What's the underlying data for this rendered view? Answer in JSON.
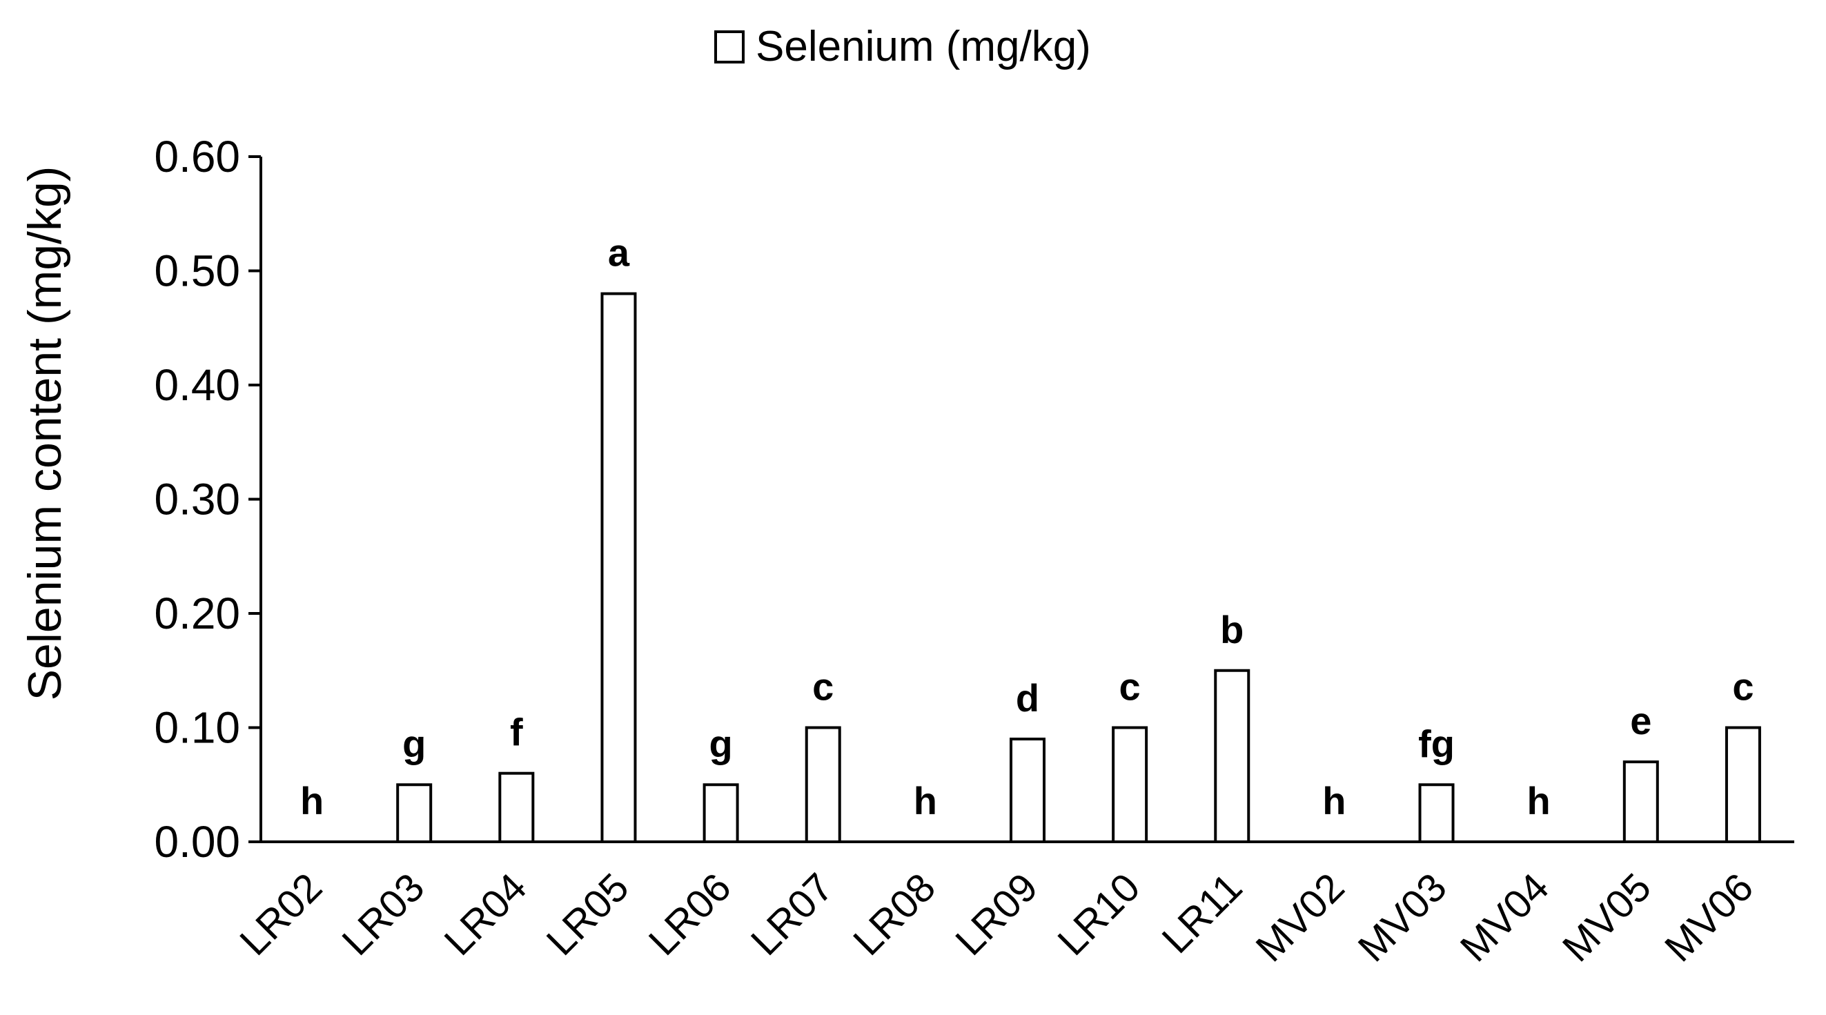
{
  "chart_data": {
    "type": "bar",
    "legend": {
      "label": "Selenium (mg/kg)",
      "placement": "top-center"
    },
    "ylabel": "Selenium content (mg/kg)",
    "xlabel": "",
    "ylim": [
      0,
      0.6
    ],
    "yticks": [
      "0.00",
      "0.10",
      "0.20",
      "0.30",
      "0.40",
      "0.50",
      "0.60"
    ],
    "grid": false,
    "categories": [
      "LR02",
      "LR03",
      "LR04",
      "LR05",
      "LR06",
      "LR07",
      "LR08",
      "LR09",
      "LR10",
      "LR11",
      "MV02",
      "MV03",
      "MV04",
      "MV05",
      "MV06"
    ],
    "series": [
      {
        "name": "Selenium (mg/kg)",
        "values": [
          0.0,
          0.05,
          0.06,
          0.48,
          0.05,
          0.1,
          0.0,
          0.09,
          0.1,
          0.15,
          0.0,
          0.05,
          0.0,
          0.07,
          0.1
        ],
        "fill": "#ffffff",
        "stroke": "#000000"
      }
    ],
    "significance_letters": [
      "h",
      "g",
      "f",
      "a",
      "g",
      "c",
      "h",
      "d",
      "c",
      "b",
      "h",
      "fg",
      "h",
      "e",
      "c"
    ]
  }
}
